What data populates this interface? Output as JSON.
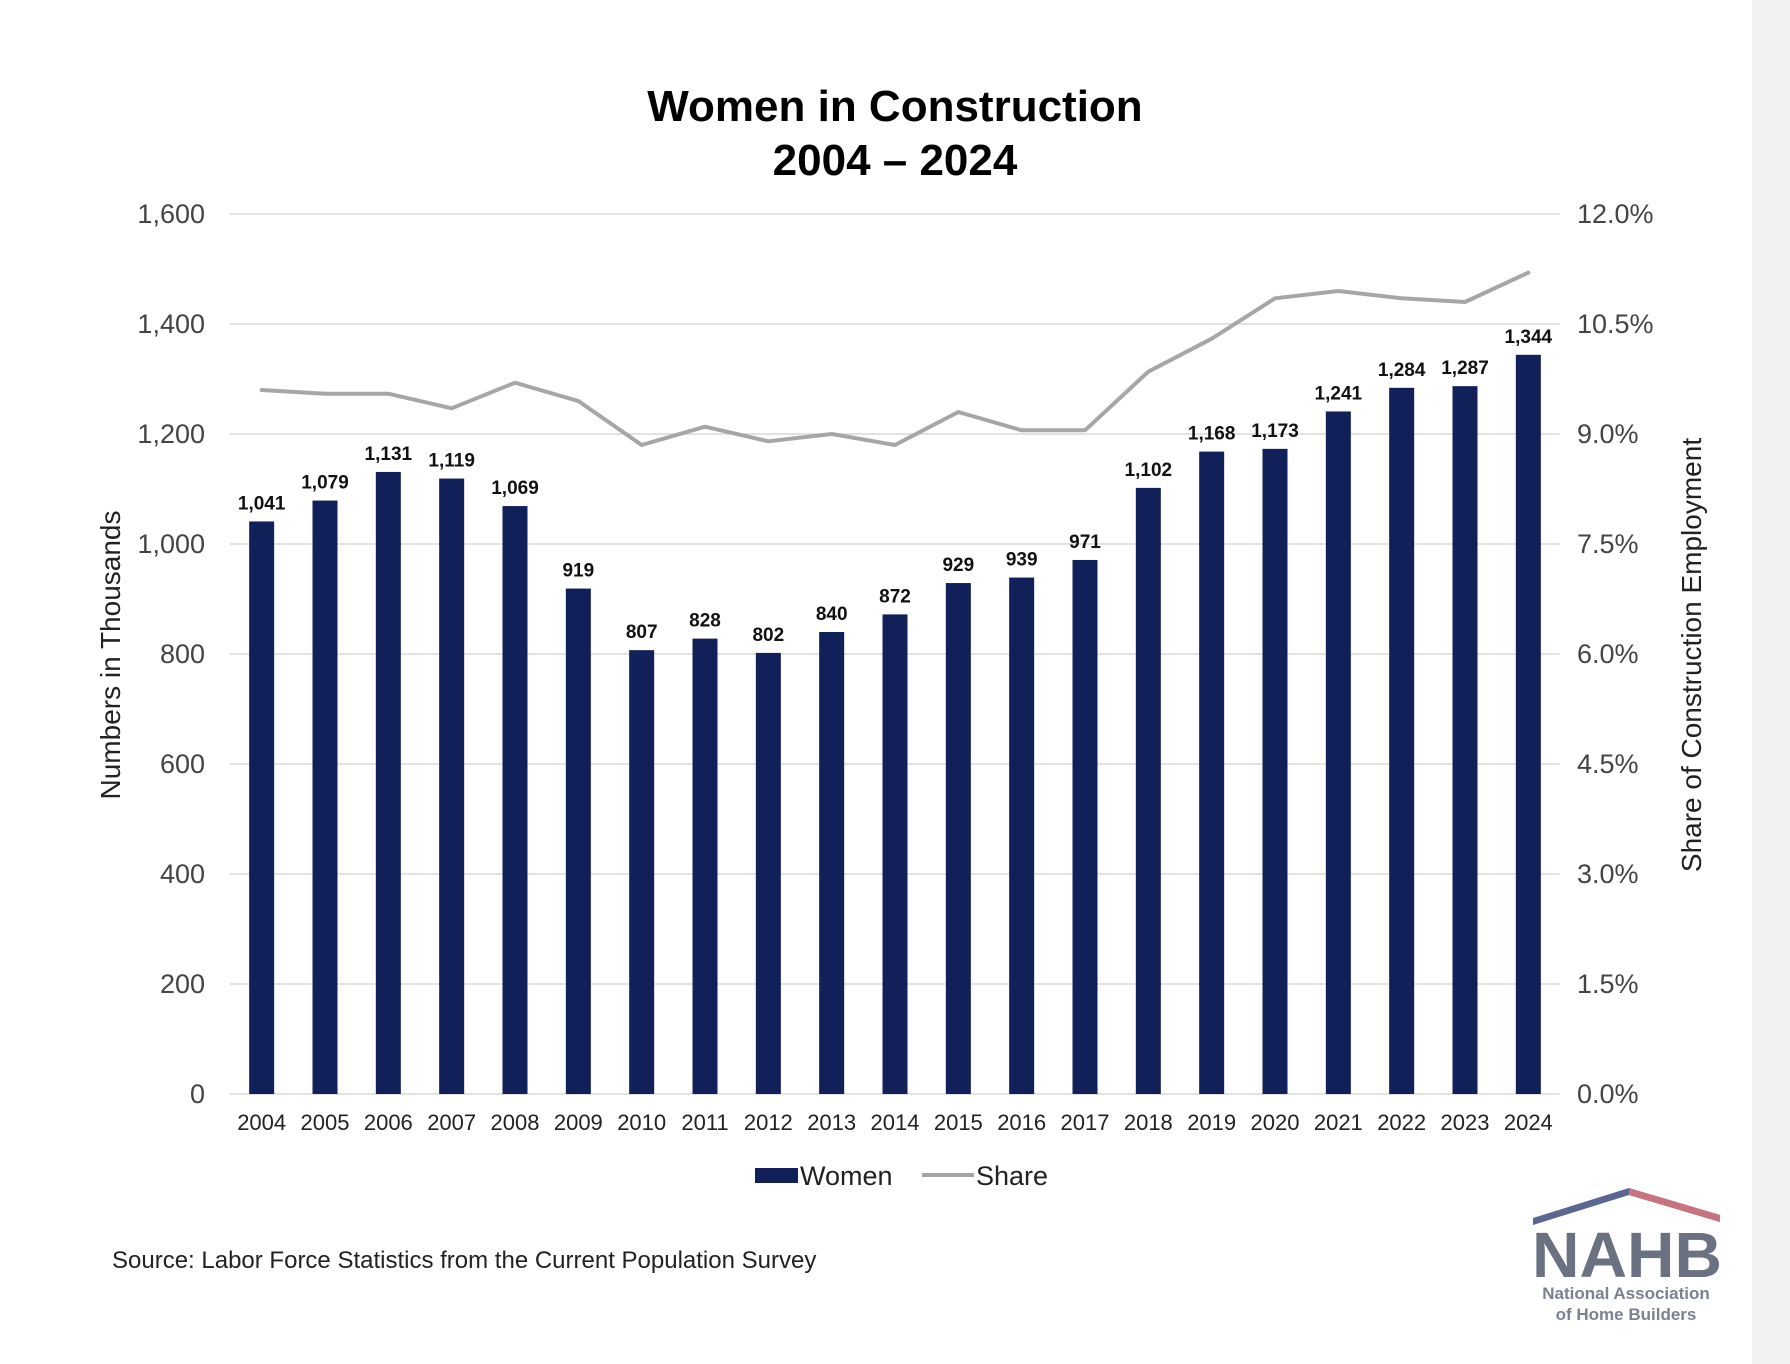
{
  "chart_data": {
    "type": "bar",
    "title": [
      "Women in Construction",
      "2004 – 2024"
    ],
    "categories": [
      "2004",
      "2005",
      "2006",
      "2007",
      "2008",
      "2009",
      "2010",
      "2011",
      "2012",
      "2013",
      "2014",
      "2015",
      "2016",
      "2017",
      "2018",
      "2019",
      "2020",
      "2021",
      "2022",
      "2023",
      "2024"
    ],
    "series": [
      {
        "name": "Women",
        "type": "bar",
        "axis": "left",
        "color": "#12205a",
        "values": [
          1041,
          1079,
          1131,
          1119,
          1069,
          919,
          807,
          828,
          802,
          840,
          872,
          929,
          939,
          971,
          1102,
          1168,
          1173,
          1241,
          1284,
          1287,
          1344
        ],
        "labels": [
          "1,041",
          "1,079",
          "1,131",
          "1,119",
          "1,069",
          "919",
          "807",
          "828",
          "802",
          "840",
          "872",
          "929",
          "939",
          "971",
          "1,102",
          "1,168",
          "1,173",
          "1,241",
          "1,284",
          "1,287",
          "1,344"
        ]
      },
      {
        "name": "Share",
        "type": "line",
        "axis": "right",
        "color": "#a6a6a6",
        "values": [
          9.6,
          9.55,
          9.55,
          9.35,
          9.7,
          9.45,
          8.85,
          9.1,
          8.9,
          9.0,
          8.85,
          9.3,
          9.05,
          9.05,
          9.85,
          10.3,
          10.85,
          10.95,
          10.85,
          10.8,
          11.2
        ]
      }
    ],
    "ylabel": "Numbers in Thousands",
    "y2label": "Share of Construction Employment",
    "ylim": [
      0,
      1600
    ],
    "y2lim": [
      0,
      12
    ],
    "yticks": [
      "0",
      "200",
      "400",
      "600",
      "800",
      "1,000",
      "1,200",
      "1,400",
      "1,600"
    ],
    "y2ticks": [
      "0.0%",
      "1.5%",
      "3.0%",
      "4.5%",
      "6.0%",
      "7.5%",
      "9.0%",
      "10.5%",
      "12.0%"
    ],
    "grid": true,
    "legend_position": "bottom"
  },
  "source": "Source: Labor Force Statistics from the Current Population Survey",
  "logo": {
    "main": "NAHB",
    "line1": "National Association",
    "line2": "of Home Builders"
  }
}
